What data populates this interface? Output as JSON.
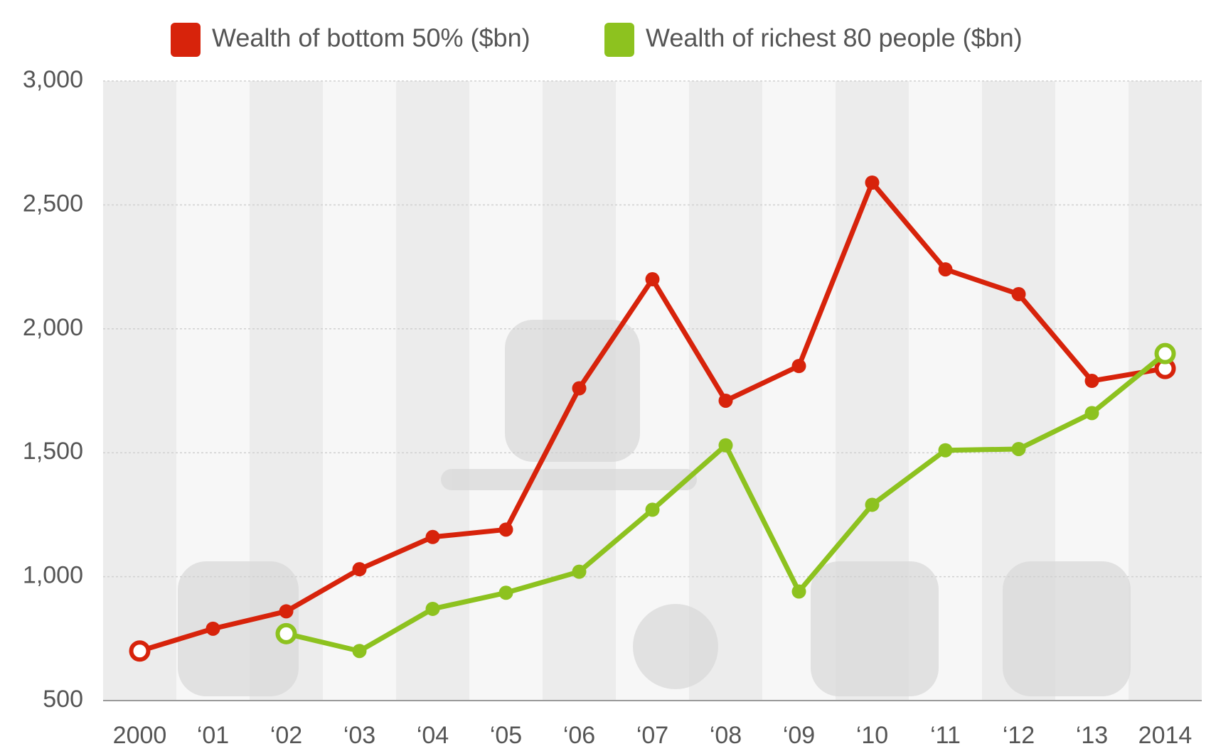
{
  "chart_data": {
    "type": "line",
    "categories": [
      "2000",
      "‘01",
      "‘02",
      "‘03",
      "‘04",
      "‘05",
      "‘06",
      "‘07",
      "‘08",
      "‘09",
      "‘10",
      "‘11",
      "‘12",
      "‘13",
      "2014"
    ],
    "series": [
      {
        "name": "Wealth of bottom 50% ($bn)",
        "color": "#d7230b",
        "values": [
          700,
          790,
          860,
          1030,
          1160,
          1190,
          1760,
          2200,
          1710,
          1850,
          2590,
          2240,
          2140,
          1790,
          1840
        ]
      },
      {
        "name": "Wealth of richest 80 people ($bn)",
        "color": "#8dc21f",
        "values": [
          null,
          null,
          770,
          700,
          870,
          935,
          1020,
          1270,
          1530,
          940,
          1290,
          1510,
          1515,
          1660,
          1900
        ]
      }
    ],
    "ylim": [
      500,
      3000
    ],
    "yticks": [
      500,
      {
        "value": 1000,
        "label": "1,000"
      },
      {
        "value": 1500,
        "label": "1,500"
      },
      {
        "value": 2000,
        "label": "2,000"
      },
      {
        "value": 2500,
        "label": "2,500"
      },
      {
        "value": 3000,
        "label": "3,000"
      }
    ],
    "grid": true,
    "legend": "top"
  }
}
